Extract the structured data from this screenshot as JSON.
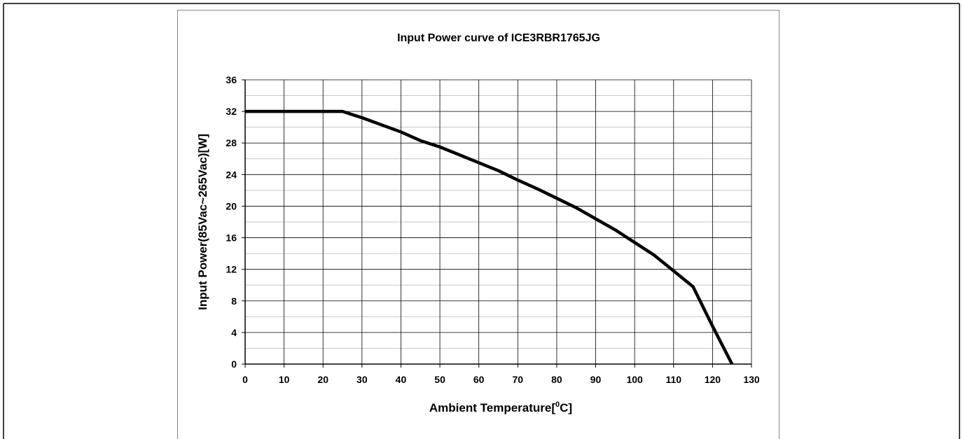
{
  "chart_data": {
    "type": "line",
    "title": "Input Power curve of ICE3RBR1765JG",
    "xlabel": [
      "Ambient  Temperature[",
      "0",
      "C]"
    ],
    "ylabel": "Input Power(85Vac~265Vac)[W]",
    "x": [
      0,
      25,
      30,
      40,
      45,
      50,
      55,
      60,
      65,
      70,
      75,
      80,
      85,
      90,
      95,
      100,
      105,
      110,
      115,
      120,
      125
    ],
    "series": [
      {
        "color": "#000000",
        "values": [
          32,
          32,
          31.2,
          29.4,
          28.3,
          27.5,
          26.5,
          25.5,
          24.5,
          23.3,
          22.2,
          21,
          19.8,
          18.4,
          17,
          15.4,
          13.8,
          11.8,
          9.8,
          4.8,
          0
        ]
      }
    ],
    "xlim": [
      0,
      130
    ],
    "xticks": [
      0,
      10,
      20,
      30,
      40,
      50,
      60,
      70,
      80,
      90,
      100,
      110,
      120,
      130
    ],
    "ylim": [
      0,
      36
    ],
    "yticks": [
      0,
      4,
      8,
      12,
      16,
      20,
      24,
      28,
      32,
      36
    ],
    "yminor": [
      2,
      6,
      10,
      14,
      18,
      22,
      26,
      30,
      34
    ],
    "grid": true
  }
}
